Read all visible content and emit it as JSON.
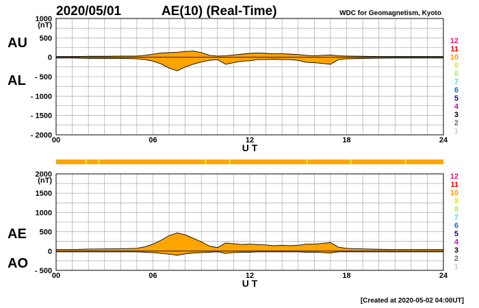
{
  "header": {
    "date": "2020/05/01",
    "title": "AE(10) (Real-Time)",
    "source": "WDC for Geomagnetism, Kyoto"
  },
  "footer": {
    "created": "[Created at 2020-05-02 04:00UT]"
  },
  "colors": {
    "fill": "#ffa500",
    "stripe": "#ffa500",
    "stripe_hi": "#e6e600",
    "grid": "#999999"
  },
  "legend": {
    "items": [
      {
        "label": "12",
        "color": "#e6197a"
      },
      {
        "label": "11",
        "color": "#e60000"
      },
      {
        "label": "10",
        "color": "#ff9900"
      },
      {
        "label": "9",
        "color": "#e6e600"
      },
      {
        "label": "8",
        "color": "#99ff33"
      },
      {
        "label": "7",
        "color": "#33e6e6"
      },
      {
        "label": "6",
        "color": "#0066ff"
      },
      {
        "label": "5",
        "color": "#0000b3"
      },
      {
        "label": "4",
        "color": "#cc00cc"
      },
      {
        "label": "3",
        "color": "#000000"
      },
      {
        "label": "2",
        "color": "#666666"
      },
      {
        "label": "1",
        "color": "#cccccc"
      }
    ]
  },
  "chart_data": [
    {
      "type": "area",
      "panel": "top",
      "label_top": "AU",
      "label_bottom": "AL",
      "unit": "(nT)",
      "xlabel": "U T",
      "xlim": [
        0,
        24
      ],
      "ylim": [
        -2000,
        1000
      ],
      "x_ticks": [
        "00",
        "06",
        "12",
        "18",
        "24"
      ],
      "y_ticks": [
        "1000",
        "500",
        "0",
        "- 500",
        "- 1000",
        "- 1500",
        "- 2000"
      ],
      "series": [
        {
          "name": "AU",
          "x": [
            0,
            1,
            2,
            3,
            4,
            5,
            5.5,
            6,
            6.5,
            7,
            7.5,
            8,
            8.5,
            9,
            9.5,
            10,
            10.5,
            11,
            11.5,
            12,
            12.5,
            13,
            13.5,
            14,
            14.5,
            15,
            15.5,
            16,
            16.5,
            17,
            17.5,
            18,
            19,
            20,
            21,
            22,
            23,
            24
          ],
          "values": [
            20,
            20,
            25,
            25,
            30,
            30,
            50,
            80,
            110,
            120,
            130,
            150,
            160,
            120,
            50,
            30,
            40,
            60,
            80,
            100,
            110,
            100,
            90,
            90,
            80,
            70,
            50,
            40,
            50,
            60,
            40,
            30,
            25,
            20,
            20,
            20,
            20,
            20
          ]
        },
        {
          "name": "AL",
          "x": [
            0,
            1,
            2,
            3,
            4,
            5,
            5.5,
            6,
            6.5,
            7,
            7.5,
            8,
            8.5,
            9,
            9.5,
            10,
            10.5,
            11,
            11.5,
            12,
            12.5,
            13,
            13.5,
            14,
            14.5,
            15,
            15.5,
            16,
            16.5,
            17,
            17.5,
            18,
            19,
            20,
            21,
            22,
            23,
            24
          ],
          "values": [
            -20,
            -20,
            -30,
            -30,
            -30,
            -40,
            -60,
            -100,
            -170,
            -280,
            -350,
            -250,
            -180,
            -120,
            -80,
            -60,
            -180,
            -140,
            -100,
            -90,
            -60,
            -60,
            -50,
            -60,
            -60,
            -80,
            -130,
            -140,
            -160,
            -180,
            -60,
            -40,
            -30,
            -25,
            -20,
            -20,
            -20,
            -20
          ]
        }
      ]
    },
    {
      "type": "area",
      "panel": "bottom",
      "label_top": "AE",
      "label_bottom": "AO",
      "unit": "(nT)",
      "xlabel": "U T",
      "xlim": [
        0,
        24
      ],
      "ylim": [
        -500,
        2000
      ],
      "x_ticks": [
        "00",
        "06",
        "12",
        "18",
        "24"
      ],
      "y_ticks": [
        "2000",
        "1500",
        "1000",
        "500",
        "0",
        "- 500"
      ],
      "series": [
        {
          "name": "AE",
          "x": [
            0,
            1,
            2,
            3,
            4,
            5,
            5.5,
            6,
            6.5,
            7,
            7.5,
            8,
            8.5,
            9,
            9.5,
            10,
            10.5,
            11,
            11.5,
            12,
            12.5,
            13,
            13.5,
            14,
            14.5,
            15,
            15.5,
            16,
            16.5,
            17,
            17.5,
            18,
            19,
            20,
            21,
            22,
            23,
            24
          ],
          "values": [
            40,
            40,
            50,
            55,
            60,
            70,
            110,
            180,
            280,
            400,
            470,
            420,
            330,
            240,
            130,
            90,
            210,
            190,
            170,
            180,
            170,
            160,
            140,
            150,
            140,
            150,
            180,
            180,
            200,
            220,
            100,
            70,
            55,
            45,
            40,
            40,
            40,
            40
          ]
        },
        {
          "name": "AO",
          "x": [
            0,
            1,
            2,
            3,
            4,
            5,
            5.5,
            6,
            6.5,
            7,
            7.5,
            8,
            8.5,
            9,
            9.5,
            10,
            10.5,
            11,
            11.5,
            12,
            12.5,
            13,
            13.5,
            14,
            14.5,
            15,
            15.5,
            16,
            16.5,
            17,
            17.5,
            18,
            19,
            20,
            21,
            22,
            23,
            24
          ],
          "values": [
            -20,
            -20,
            -20,
            -20,
            -20,
            -20,
            -30,
            -40,
            -60,
            -80,
            -110,
            -70,
            -50,
            -40,
            -30,
            -20,
            -60,
            -40,
            -30,
            -30,
            -20,
            -20,
            -20,
            -20,
            -20,
            -20,
            -30,
            -30,
            -40,
            -50,
            -20,
            -20,
            -20,
            -20,
            -20,
            -20,
            -20,
            -20
          ]
        }
      ]
    }
  ]
}
